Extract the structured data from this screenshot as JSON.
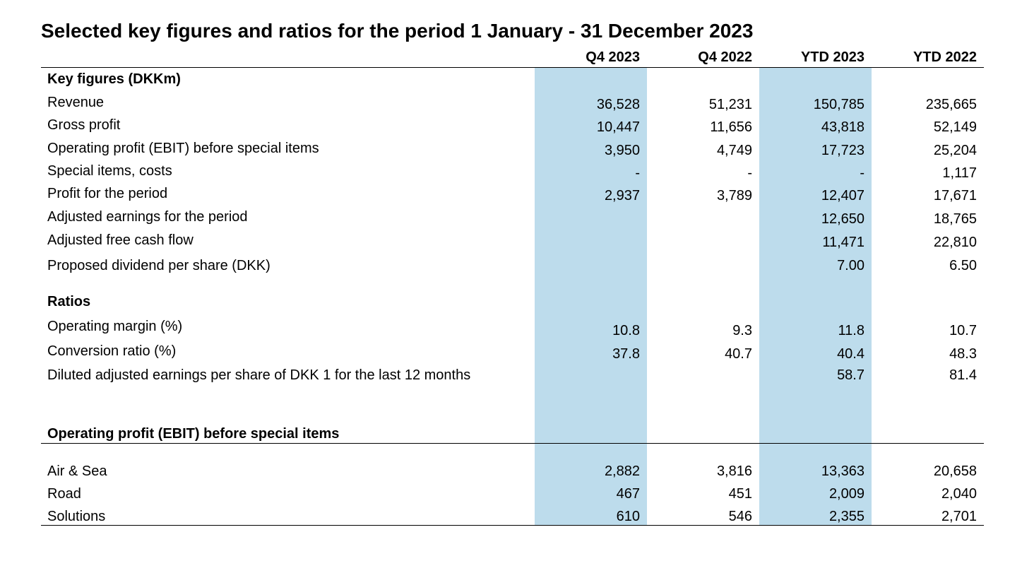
{
  "title": "Selected key figures and ratios for the period 1 January - 31 December 2023",
  "columns": [
    "Q4 2023",
    "Q4 2022",
    "YTD 2023",
    "YTD 2022"
  ],
  "highlight_color": "#BDDCEC",
  "sections": {
    "key_figures": "Key figures (DKKm)",
    "ratios": "Ratios",
    "ebit_segments": "Operating profit (EBIT) before special items"
  },
  "rows": [
    {
      "label": "Revenue",
      "values": [
        "36,528",
        "51,231",
        "150,785",
        "235,665"
      ]
    },
    {
      "label": "Gross profit",
      "values": [
        "10,447",
        "11,656",
        "43,818",
        "52,149"
      ]
    },
    {
      "label": "Operating profit (EBIT) before special items",
      "values": [
        "3,950",
        "4,749",
        "17,723",
        "25,204"
      ]
    },
    {
      "label": "Special items, costs",
      "values": [
        "-",
        "-",
        "-",
        "1,117"
      ]
    },
    {
      "label": "Profit for the period",
      "values": [
        "2,937",
        "3,789",
        "12,407",
        "17,671"
      ]
    },
    {
      "label": "Adjusted earnings for the period",
      "values": [
        "",
        "",
        "12,650",
        "18,765"
      ]
    },
    {
      "label": "Adjusted free cash flow",
      "values": [
        "",
        "",
        "11,471",
        "22,810"
      ]
    },
    {
      "label": "Proposed dividend per share (DKK)",
      "values": [
        "",
        "",
        "7.00",
        "6.50"
      ]
    },
    {
      "label": "Operating margin (%)",
      "values": [
        "10.8",
        "9.3",
        "11.8",
        "10.7"
      ]
    },
    {
      "label": "Conversion ratio (%)",
      "values": [
        "37.8",
        "40.7",
        "40.4",
        "48.3"
      ]
    },
    {
      "label": "Diluted adjusted earnings per share of DKK 1 for the last 12 months",
      "values": [
        "",
        "",
        "58.7",
        "81.4"
      ]
    },
    {
      "label": "Air & Sea",
      "values": [
        "2,882",
        "3,816",
        "13,363",
        "20,658"
      ]
    },
    {
      "label": "Road",
      "values": [
        "467",
        "451",
        "2,009",
        "2,040"
      ]
    },
    {
      "label": "Solutions",
      "values": [
        "610",
        "546",
        "2,355",
        "2,701"
      ]
    }
  ]
}
